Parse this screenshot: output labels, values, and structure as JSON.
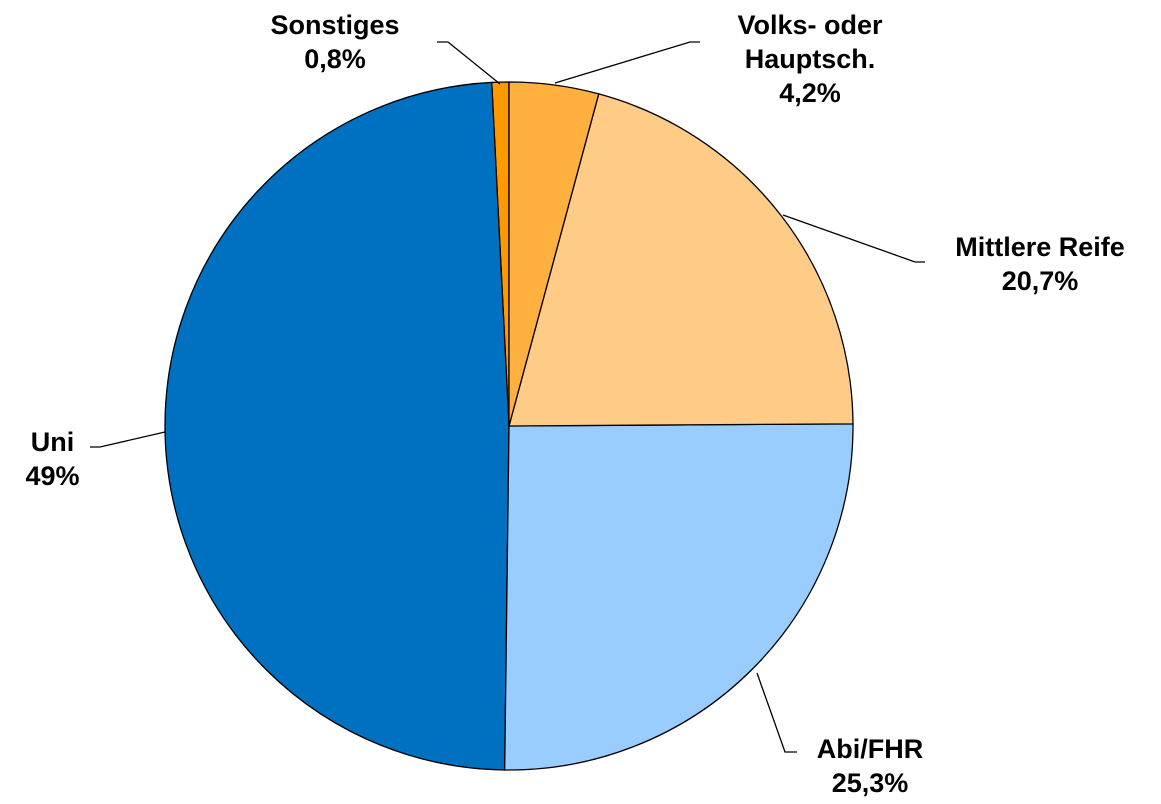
{
  "chart_data": {
    "type": "pie",
    "categories": [
      "Volks- oder Hauptsch.",
      "Mittlere Reife",
      "Abi/FHR",
      "Uni",
      "Sonstiges"
    ],
    "values": [
      4.2,
      20.7,
      25.3,
      49,
      0.8
    ],
    "value_labels": [
      "4,2%",
      "20,7%",
      "25,3%",
      "49%",
      "0,8%"
    ],
    "colors": [
      "#FFB03F",
      "#FFCC88",
      "#99CCFF",
      "#0070C0",
      "#FF9900"
    ]
  }
}
